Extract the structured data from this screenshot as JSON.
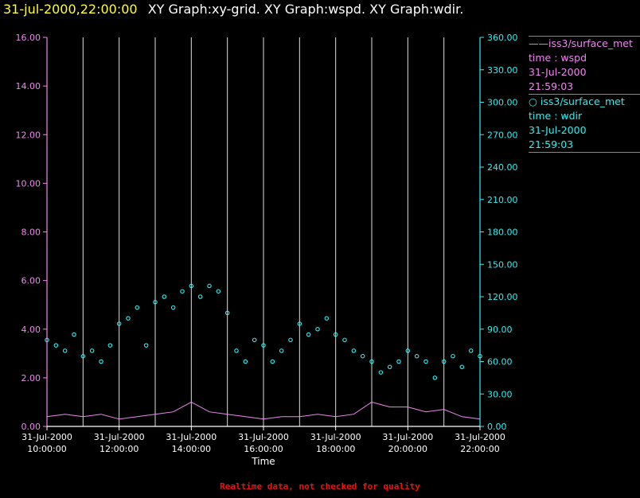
{
  "header": {
    "date": "31-jul-2000,22:00:00",
    "title": "XY Graph:xy-grid.  XY Graph:wspd.  XY Graph:wdir."
  },
  "legend": [
    {
      "line1": "——iss3/surface_met",
      "line2": "time : wspd",
      "line3": "31-Jul-2000",
      "line4": "21:59:03"
    },
    {
      "line1": "○  iss3/surface_met",
      "line2": "time : wdir",
      "line3": "31-Jul-2000",
      "line4": "21:59:03"
    }
  ],
  "footer": "Realtime data, not checked for quality",
  "colors": {
    "wspd": "#ee88ee",
    "wdir": "#33eeee",
    "grid": "#dddddd",
    "header_date": "#ffff33",
    "footer": "#ee1111"
  },
  "chart_data": {
    "type": "line",
    "xlabel": "Time",
    "x_ticks": [
      {
        "date": "31-Jul-2000",
        "time": "10:00:00"
      },
      {
        "date": "31-Jul-2000",
        "time": "12:00:00"
      },
      {
        "date": "31-Jul-2000",
        "time": "14:00:00"
      },
      {
        "date": "31-Jul-2000",
        "time": "16:00:00"
      },
      {
        "date": "31-Jul-2000",
        "time": "18:00:00"
      },
      {
        "date": "31-Jul-2000",
        "time": "20:00:00"
      },
      {
        "date": "31-Jul-2000",
        "time": "22:00:00"
      }
    ],
    "xlim": [
      "31-Jul-2000 10:00:00",
      "31-Jul-2000 22:00:00"
    ],
    "y_left": {
      "ticks": [
        "0.00",
        "2.00",
        "4.00",
        "6.00",
        "8.00",
        "10.00",
        "12.00",
        "14.00",
        "16.00"
      ],
      "ylim": [
        0,
        16
      ]
    },
    "y_right": {
      "ticks": [
        "0.00",
        "30.00",
        "60.00",
        "90.00",
        "120.00",
        "150.00",
        "180.00",
        "210.00",
        "240.00",
        "270.00",
        "300.00",
        "330.00",
        "360.00"
      ],
      "ylim": [
        0,
        360
      ]
    },
    "grid": "vertical lines every 1 hour",
    "series": [
      {
        "name": "iss3/surface_met time : wspd",
        "style": "line",
        "axis": "left",
        "x": [
          "10:00",
          "10:30",
          "11:00",
          "11:30",
          "12:00",
          "12:30",
          "13:00",
          "13:30",
          "14:00",
          "14:30",
          "15:00",
          "15:30",
          "16:00",
          "16:30",
          "17:00",
          "17:30",
          "18:00",
          "18:30",
          "19:00",
          "19:30",
          "20:00",
          "20:30",
          "21:00",
          "21:30",
          "22:00"
        ],
        "values": [
          0.4,
          0.5,
          0.4,
          0.5,
          0.3,
          0.4,
          0.5,
          0.6,
          1.0,
          0.6,
          0.5,
          0.4,
          0.3,
          0.4,
          0.4,
          0.5,
          0.4,
          0.5,
          1.0,
          0.8,
          0.8,
          0.6,
          0.7,
          0.4,
          0.3
        ]
      },
      {
        "name": "iss3/surface_met time : wdir",
        "style": "markers",
        "axis": "right",
        "x": [
          "10:00",
          "10:15",
          "10:30",
          "10:45",
          "11:00",
          "11:15",
          "11:30",
          "11:45",
          "12:00",
          "12:15",
          "12:30",
          "12:45",
          "13:00",
          "13:15",
          "13:30",
          "13:45",
          "14:00",
          "14:15",
          "14:30",
          "14:45",
          "15:00",
          "15:15",
          "15:30",
          "15:45",
          "16:00",
          "16:15",
          "16:30",
          "16:45",
          "17:00",
          "17:15",
          "17:30",
          "17:45",
          "18:00",
          "18:15",
          "18:30",
          "18:45",
          "19:00",
          "19:15",
          "19:30",
          "19:45",
          "20:00",
          "20:15",
          "20:30",
          "20:45",
          "21:00",
          "21:15",
          "21:30",
          "21:45",
          "22:00"
        ],
        "values": [
          80,
          75,
          70,
          85,
          65,
          70,
          60,
          75,
          95,
          100,
          110,
          75,
          115,
          120,
          110,
          125,
          130,
          120,
          130,
          125,
          105,
          70,
          60,
          80,
          75,
          60,
          70,
          80,
          95,
          85,
          90,
          100,
          85,
          80,
          70,
          65,
          60,
          50,
          55,
          60,
          70,
          65,
          60,
          45,
          60,
          65,
          55,
          70,
          65
        ]
      }
    ]
  }
}
